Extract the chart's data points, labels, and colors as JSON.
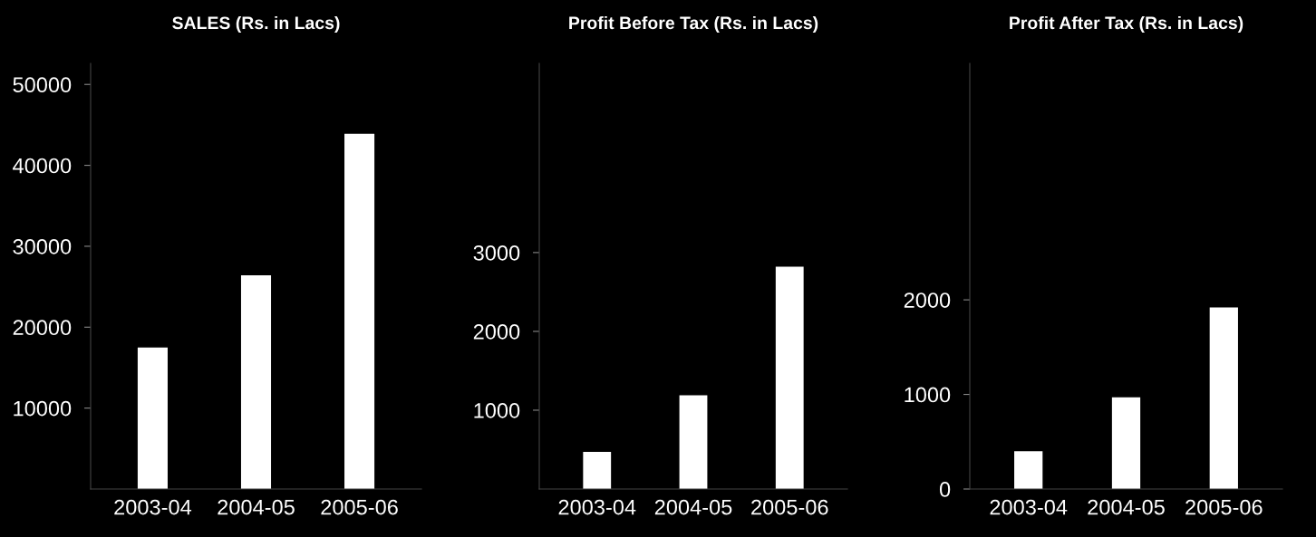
{
  "chart_data": [
    {
      "type": "bar",
      "title": "SALES (Rs. in Lacs)",
      "categories": [
        "2003-04",
        "2004-05",
        "2005-06"
      ],
      "values": [
        17500,
        26400,
        43900
      ],
      "color": "#ffffff",
      "ylim": [
        0,
        52600
      ],
      "yticks": [
        10000,
        20000,
        30000,
        40000,
        50000
      ]
    },
    {
      "type": "bar",
      "title": "Profit Before Tax (Rs. in Lacs)",
      "categories": [
        "2003-04",
        "2004-05",
        "2005-06"
      ],
      "values": [
        470,
        1190,
        2820
      ],
      "color": "#ffffff",
      "ylim": [
        0,
        5400
      ],
      "yticks": [
        1000,
        2000,
        3000
      ]
    },
    {
      "type": "bar",
      "title": "Profit After Tax (Rs. in Lacs)",
      "categories": [
        "2003-04",
        "2004-05",
        "2005-06"
      ],
      "values": [
        400,
        970,
        1920
      ],
      "color": "#ffffff",
      "ylim": [
        0,
        4500
      ],
      "yticks": [
        0,
        1000,
        2000
      ]
    }
  ]
}
